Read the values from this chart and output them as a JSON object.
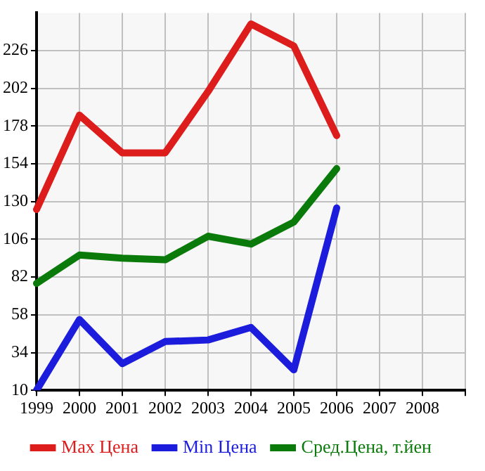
{
  "chart_data": {
    "type": "line",
    "categories": [
      "1999",
      "2000",
      "2001",
      "2002",
      "2003",
      "2004",
      "2005",
      "2006",
      "2007",
      "2008",
      null
    ],
    "series": [
      {
        "name": "Max Цена",
        "color": "#dd1c1c",
        "values": [
          125,
          185,
          161,
          161,
          200,
          243,
          229,
          172,
          null,
          null,
          null
        ]
      },
      {
        "name": "Min Цена",
        "color": "#1c1cdd",
        "values": [
          10,
          55,
          27,
          41,
          42,
          50,
          23,
          126,
          null,
          null,
          null
        ]
      },
      {
        "name": "Сред.Цена, т.йен",
        "color": "#0a7a0a",
        "values": [
          78,
          96,
          94,
          93,
          108,
          103,
          117,
          151,
          null,
          null,
          null
        ]
      }
    ],
    "ylim": [
      10,
      250
    ],
    "yticks": [
      10,
      34,
      58,
      82,
      106,
      130,
      154,
      178,
      202,
      226
    ],
    "grid": true,
    "legend": "bottom",
    "marker": "none",
    "line_style": "solid"
  }
}
